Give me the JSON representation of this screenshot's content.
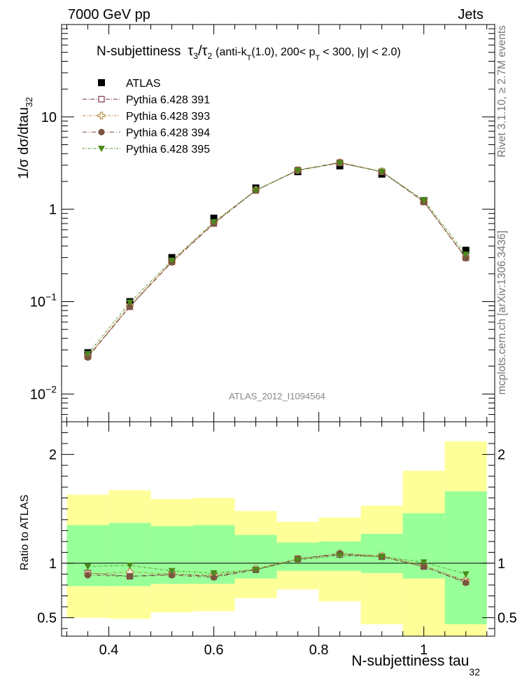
{
  "header": {
    "left": "7000 GeV pp",
    "right": "Jets"
  },
  "side_labels": {
    "rivet": "Rivet 3.1.10, ≥ 2.7M events",
    "mcplots": "mcplots.cern.ch [arXiv:1306.3436]"
  },
  "chart_data": {
    "type": "scatter",
    "title": {
      "main": "N-subjettiness",
      "tau3": "τ",
      "tau3_sub": "3",
      "slash": "/",
      "tau2": "τ",
      "tau2_sub": "2",
      "open": "(anti-k",
      "kt_sub": "T",
      "mid": "(1.0), 200< p",
      "pt_sub": "T",
      "end": "< 300, |y| < 2.0)"
    },
    "watermark": "ATLAS_2012_I1094564",
    "ylabel": {
      "main": "1/σ dσ/dtau",
      "sub": "32"
    },
    "xlabel": {
      "main": "N-subjettiness tau",
      "sub": "32"
    },
    "ratio_ylabel": "Ratio to ATLAS",
    "xlim": [
      0.31,
      1.135
    ],
    "ylim": [
      0.005,
      100
    ],
    "yscale": "log",
    "ratio_ylim": [
      0.33,
      2.3
    ],
    "x": [
      0.36,
      0.44,
      0.52,
      0.6,
      0.68,
      0.76,
      0.84,
      0.92,
      1.0,
      1.08
    ],
    "bin_edges": [
      0.32,
      0.4,
      0.48,
      0.56,
      0.64,
      0.72,
      0.8,
      0.88,
      0.96,
      1.04,
      1.12
    ],
    "x_ticks": [
      0.4,
      0.6,
      0.8,
      1.0
    ],
    "x_tick_labels": [
      "0.4",
      "0.6",
      "0.8",
      "1"
    ],
    "y_ticks": [
      0.01,
      0.1,
      1,
      10
    ],
    "y_tick_labels": [
      {
        "base": "10",
        "exp": "−2"
      },
      {
        "base": "10",
        "exp": "−1"
      },
      {
        "base": "1",
        "exp": ""
      },
      {
        "base": "10",
        "exp": ""
      }
    ],
    "ratio_ticks": [
      0.5,
      1,
      2
    ],
    "ratio_tick_labels": [
      "0.5",
      "1",
      "2"
    ],
    "bands": {
      "inner": {
        "color": "#99ff99",
        "low": [
          0.79,
          0.79,
          0.81,
          0.81,
          0.86,
          0.93,
          0.93,
          0.91,
          0.86,
          0.44
        ],
        "high": [
          1.35,
          1.37,
          1.34,
          1.35,
          1.26,
          1.19,
          1.2,
          1.27,
          1.46,
          1.66
        ]
      },
      "outer": {
        "color": "#ffff99",
        "low": [
          0.5,
          0.49,
          0.55,
          0.56,
          0.68,
          0.76,
          0.65,
          0.44,
          0.3,
          0.3
        ],
        "high": [
          1.63,
          1.67,
          1.59,
          1.6,
          1.48,
          1.38,
          1.42,
          1.53,
          1.85,
          2.12
        ]
      }
    },
    "series": [
      {
        "name": "ATLAS",
        "color": "#000000",
        "marker": "square-filled",
        "values": [
          0.028,
          0.1,
          0.3,
          0.8,
          1.7,
          2.55,
          2.95,
          2.4,
          1.24,
          0.36
        ]
      },
      {
        "name": "Pythia 6.428 391",
        "color": "#7b3a4a",
        "marker": "square-open",
        "ratio": [
          0.91,
          0.88,
          0.9,
          0.88,
          0.94,
          1.04,
          1.08,
          1.06,
          0.97,
          0.83
        ]
      },
      {
        "name": "Pythia 6.428 393",
        "color": "#b88a3a",
        "marker": "cross-open",
        "ratio": [
          0.9,
          0.92,
          0.9,
          0.89,
          0.95,
          1.04,
          1.09,
          1.07,
          0.98,
          0.84
        ]
      },
      {
        "name": "Pythia 6.428 394",
        "color": "#7a5540",
        "marker": "circle-filled",
        "ratio": [
          0.89,
          0.88,
          0.89,
          0.87,
          0.94,
          1.04,
          1.09,
          1.06,
          0.97,
          0.82
        ]
      },
      {
        "name": "Pythia 6.428 395",
        "color": "#4a8a1a",
        "marker": "triangle-down-filled",
        "ratio": [
          0.97,
          0.98,
          0.93,
          0.91,
          0.94,
          1.03,
          1.07,
          1.06,
          1.01,
          0.9
        ]
      }
    ]
  }
}
